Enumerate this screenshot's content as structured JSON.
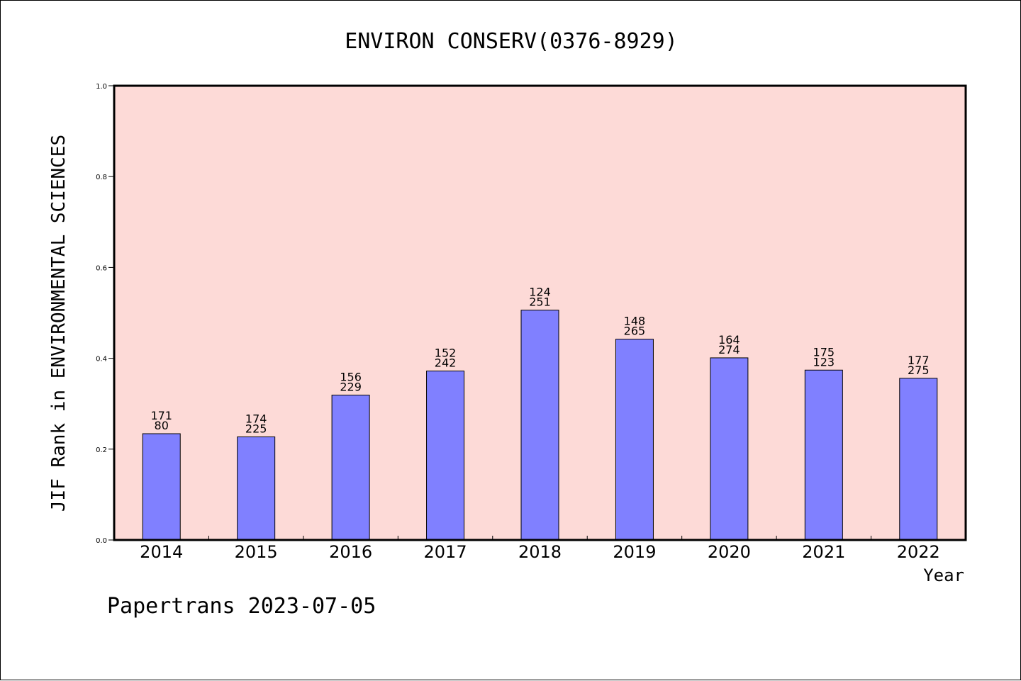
{
  "chart_data": {
    "type": "bar",
    "title": "ENVIRON CONSERV(0376-8929)",
    "ylabel": "JIF Rank in ENVIRONMENTAL SCIENCES",
    "xlabel": "Year",
    "ylim": [
      0.0,
      1.0
    ],
    "yticks": [
      "0.0",
      "0.2",
      "0.4",
      "0.6",
      "0.8",
      "1.0"
    ],
    "categories": [
      "2014",
      "2015",
      "2016",
      "2017",
      "2018",
      "2019",
      "2020",
      "2021",
      "2022"
    ],
    "values": [
      0.234,
      0.227,
      0.319,
      0.372,
      0.506,
      0.442,
      0.401,
      0.374,
      0.356
    ],
    "label_top": [
      "171",
      "174",
      "156",
      "152",
      "124",
      "148",
      "164",
      "175",
      "177"
    ],
    "label_bottom": [
      "80",
      "225",
      "229",
      "242",
      "251",
      "265",
      "274",
      "123",
      "275"
    ],
    "bar_color": "#8080ff",
    "plot_background": "#fddad7",
    "grid": false
  },
  "footer": "Papertrans 2023-07-05"
}
